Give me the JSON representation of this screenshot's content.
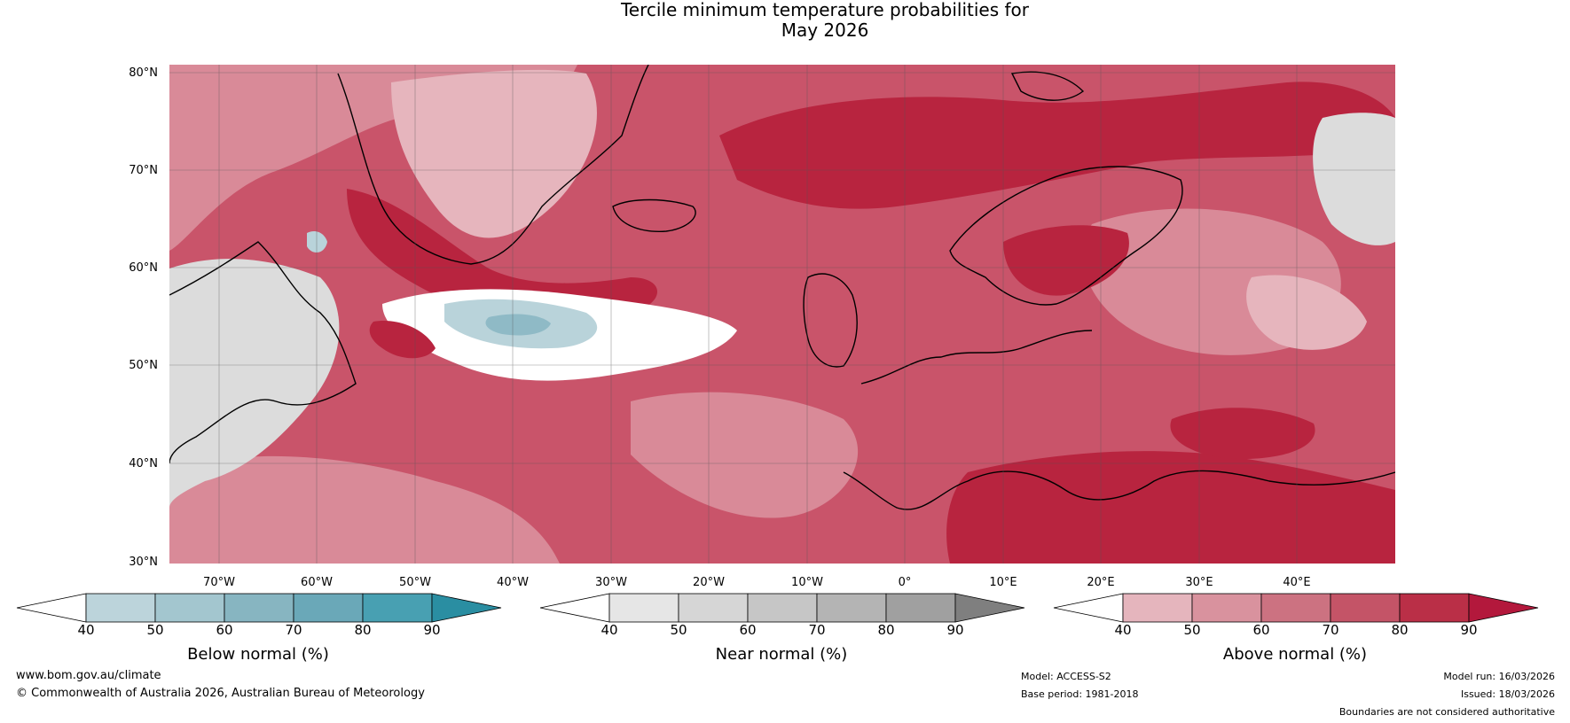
{
  "title": {
    "line1": "Tercile minimum temperature probabilities for",
    "line2": "May 2026"
  },
  "map": {
    "lat_labels": [
      "80°N",
      "70°N",
      "60°N",
      "50°N",
      "40°N",
      "30°N"
    ],
    "lon_labels": [
      "70°W",
      "60°W",
      "50°W",
      "40°W",
      "30°W",
      "20°W",
      "10°W",
      "0°",
      "10°E",
      "20°E",
      "30°E",
      "40°E"
    ],
    "colors": {
      "above_strong": "#b8243f",
      "above_mid": "#c9546a",
      "above_light": "#d98a98",
      "above_pale": "#e6b5bd",
      "near": "#dcdcdc",
      "below_light": "#b9d3da",
      "below_mid": "#8fbac6",
      "coast": "#000000",
      "border": "#888888",
      "grid": "#555555"
    }
  },
  "colorbars": [
    {
      "title": "Below normal (%)",
      "ticks": [
        "40",
        "50",
        "60",
        "70",
        "80",
        "90"
      ],
      "colors": [
        "#ffffff",
        "#bcd4db",
        "#a3c6cf",
        "#87b5c1",
        "#6aa8b8",
        "#48a0b2",
        "#2a8ea2"
      ]
    },
    {
      "title": "Near normal (%)",
      "ticks": [
        "40",
        "50",
        "60",
        "70",
        "80",
        "90"
      ],
      "colors": [
        "#ffffff",
        "#e6e6e6",
        "#d6d6d6",
        "#c6c6c6",
        "#b4b4b4",
        "#a0a0a0",
        "#7f7f7f"
      ]
    },
    {
      "title": "Above normal (%)",
      "ticks": [
        "40",
        "50",
        "60",
        "70",
        "80",
        "90"
      ],
      "colors": [
        "#ffffff",
        "#e5b5bd",
        "#d9929e",
        "#cc7281",
        "#c45467",
        "#ba2f47",
        "#b3183c"
      ]
    }
  ],
  "footer": {
    "website": "www.bom.gov.au/climate",
    "copyright": "© Commonwealth of Australia 2026, Australian Bureau of Meteorology",
    "model": "Model: ACCESS-S2",
    "base_period": "Base period: 1981-2018",
    "model_run": "Model run: 16/03/2026",
    "issued": "Issued: 18/03/2026",
    "disclaimer": "Boundaries are not considered authoritative"
  }
}
